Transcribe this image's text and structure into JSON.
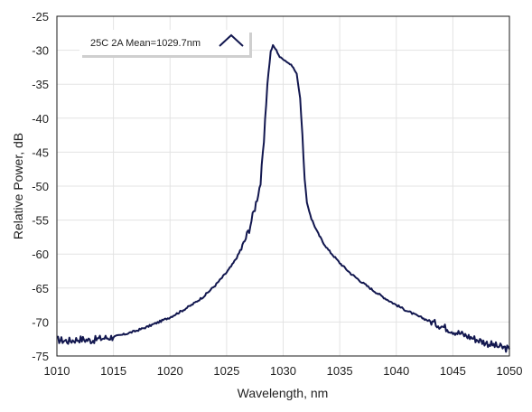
{
  "chart_data": {
    "type": "line",
    "xlabel": "Wavelength, nm",
    "ylabel": "Relative Power, dB",
    "xlim": [
      1010,
      1050
    ],
    "ylim": [
      -75,
      -25
    ],
    "xticks": [
      "1010",
      "1015",
      "1020",
      "1025",
      "1030",
      "1035",
      "1040",
      "1045",
      "1050"
    ],
    "yticks": [
      "-25",
      "-30",
      "-35",
      "-40",
      "-45",
      "-50",
      "-55",
      "-60",
      "-65",
      "-70",
      "-75"
    ],
    "grid": true,
    "legend_position": "top-left",
    "series": [
      {
        "name": "25C 2A Mean=1029.7nm",
        "color": "#12174f",
        "x": [
          1010,
          1011,
          1012,
          1013,
          1014,
          1015,
          1016,
          1017,
          1018,
          1019,
          1020,
          1021,
          1022,
          1023,
          1024,
          1025,
          1025.5,
          1026,
          1026.5,
          1027,
          1027.5,
          1028,
          1028.3,
          1028.6,
          1028.9,
          1029.1,
          1029.4,
          1029.7,
          1030,
          1030.4,
          1030.8,
          1031.2,
          1031.5,
          1031.7,
          1031.9,
          1032.1,
          1032.5,
          1033,
          1033.5,
          1034,
          1035,
          1036,
          1037,
          1038,
          1039,
          1040,
          1041,
          1042,
          1043,
          1044,
          1045,
          1046,
          1047,
          1048,
          1049,
          1050
        ],
        "y": [
          -72.6,
          -72.8,
          -72.5,
          -72.7,
          -72.4,
          -72.2,
          -71.8,
          -71.3,
          -70.7,
          -70.0,
          -69.3,
          -68.4,
          -67.4,
          -66.2,
          -64.6,
          -62.7,
          -61.6,
          -60.2,
          -58.5,
          -56.3,
          -53.2,
          -49.5,
          -43.5,
          -35.0,
          -30.2,
          -29.3,
          -30.0,
          -31.0,
          -31.3,
          -31.8,
          -32.3,
          -33.5,
          -37.0,
          -42.5,
          -49.0,
          -52.5,
          -54.8,
          -56.7,
          -58.2,
          -59.4,
          -61.3,
          -62.9,
          -64.2,
          -65.4,
          -66.5,
          -67.5,
          -68.4,
          -69.2,
          -69.9,
          -70.6,
          -71.3,
          -71.9,
          -72.5,
          -73.1,
          -73.6,
          -74.0
        ]
      }
    ]
  }
}
